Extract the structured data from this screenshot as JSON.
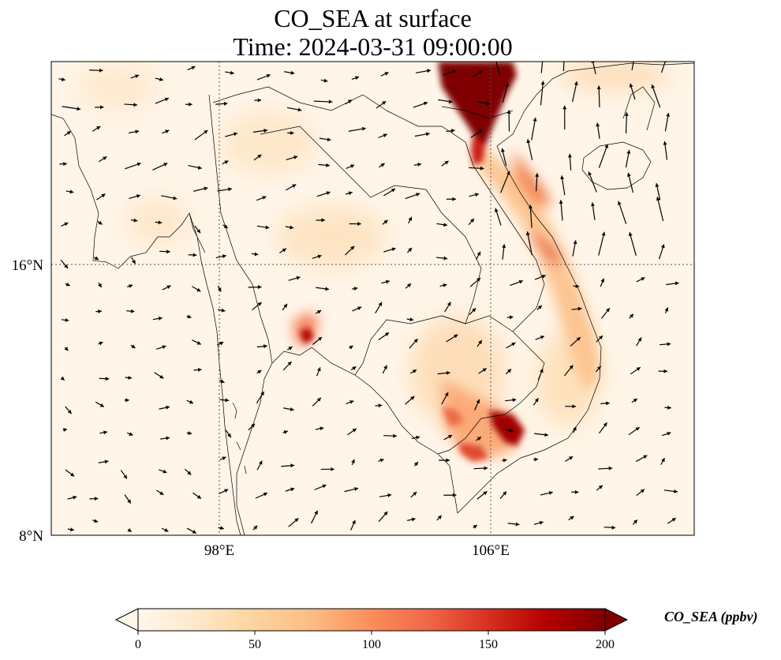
{
  "figure": {
    "title_line1": "CO_SEA at surface",
    "title_line2": "Time: 2024-03-31 09:00:00"
  },
  "map": {
    "lon_ticks": [
      {
        "value": 98,
        "label": "98°E"
      },
      {
        "value": 106,
        "label": "106°E"
      }
    ],
    "lat_ticks": [
      {
        "value": 16,
        "label": "16°N"
      },
      {
        "value": 8,
        "label": "8°N"
      }
    ],
    "gridlines": "dotted",
    "coastlines": true,
    "country_borders": true,
    "wind_vectors": true
  },
  "colorbar": {
    "label": "CO_SEA (ppbv)",
    "ticks": [
      "0",
      "50",
      "100",
      "150",
      "200"
    ],
    "min": 0,
    "max": 200,
    "extend": "both",
    "colormap": "OrRd",
    "colors": [
      "#fff7ec",
      "#fee8c8",
      "#fdd49e",
      "#fdbb84",
      "#fc8d59",
      "#ef6548",
      "#d7301f",
      "#b30000",
      "#7f0000"
    ]
  }
}
